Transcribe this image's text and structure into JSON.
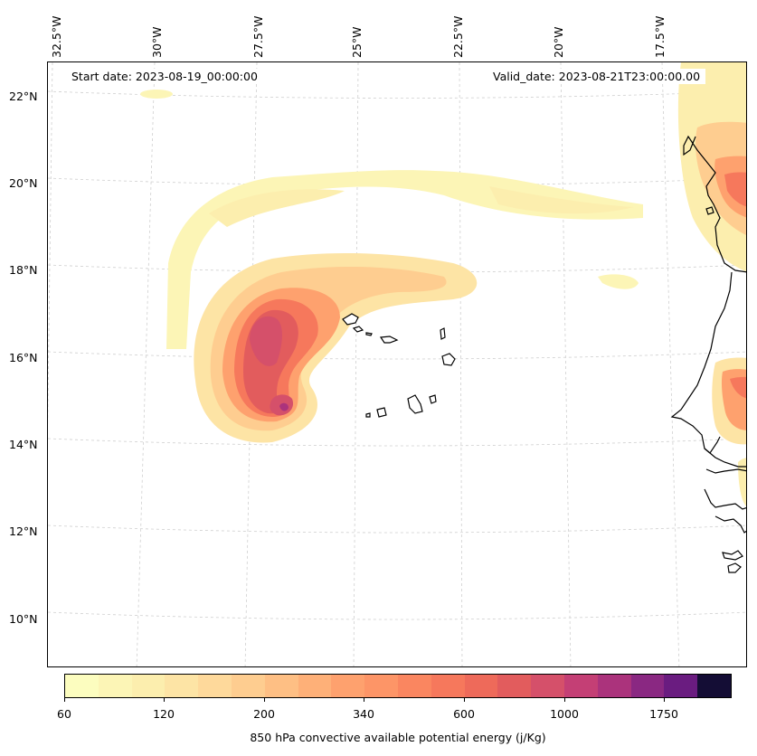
{
  "map": {
    "start_date_label": "Start date: 2023-08-19_00:00:00",
    "valid_date_label": "Valid_date: 2023-08-21T23:00:00.00",
    "field": "850 hPa convective available potential energy",
    "units": "j/Kg",
    "extent": {
      "lon": [
        -33,
        -14
      ],
      "lat": [
        9,
        23
      ]
    },
    "gridlines": "dashed light gray",
    "longitude_labels": [
      "32.5°W",
      "30°W",
      "27.5°W",
      "25°W",
      "22.5°W",
      "20°W",
      "17.5°W"
    ],
    "latitude_labels": [
      "22°N",
      "20°N",
      "18°N",
      "16°N",
      "14°N",
      "12°N",
      "10°N"
    ],
    "features": [
      "Cape Verde islands",
      "West African coastline (Senegal, Gambia, Guinea-Bissau)"
    ]
  },
  "colorbar": {
    "label": "850 hPa convective available potential energy (j/Kg)",
    "tick_labels": [
      "60",
      "120",
      "200",
      "340",
      "600",
      "1000",
      "1750"
    ],
    "colors": [
      "#fcfdbf",
      "#fcf5b6",
      "#fceeae",
      "#fde4a5",
      "#fed99b",
      "#fecd90",
      "#febf84",
      "#feb078",
      "#fea16e",
      "#fd9567",
      "#fa8660",
      "#f6785c",
      "#ee6a5a",
      "#e25c5d",
      "#d5506a",
      "#c43f75",
      "#ab337c",
      "#8a2882",
      "#6a1c80",
      "#140d35"
    ],
    "extend": "both"
  }
}
